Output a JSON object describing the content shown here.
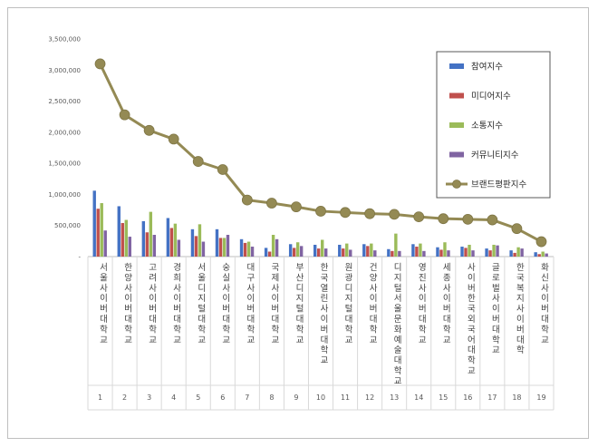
{
  "chart_data": {
    "type": "bar",
    "title": "",
    "xlabel": "",
    "ylabel": "",
    "ylim": [
      0,
      3500000
    ],
    "yticks": [
      "-",
      "500,000",
      "1,000,000",
      "1,500,000",
      "2,000,000",
      "2,500,000",
      "3,000,000",
      "3,500,000"
    ],
    "grid": false,
    "legend_position": "right",
    "categories": [
      "서울사이버대학교",
      "한양사이버대학교",
      "고려사이버대학교",
      "경희사이버대학교",
      "서울디지털대학교",
      "숭실사이버대학교",
      "대구사이버대학교",
      "국제사이버대학교",
      "부산디지털대학교",
      "한국열린사이버대학교",
      "원광디지털대학교",
      "건양사이버대학교",
      "디지털서울문화예술대학교",
      "영진사이버대학교",
      "세종사이버대학교",
      "사이버한국외국어대학교",
      "글로벌사이버대학교",
      "한국복지사이버대학",
      "화신사이버대학교"
    ],
    "indices": [
      "1",
      "2",
      "3",
      "4",
      "5",
      "6",
      "7",
      "8",
      "9",
      "10",
      "11",
      "12",
      "13",
      "14",
      "15",
      "16",
      "17",
      "18",
      "19"
    ],
    "series": [
      {
        "name": "참여지수",
        "kind": "bar",
        "color": "#4472c4",
        "values": [
          1060000,
          810000,
          570000,
          620000,
          440000,
          440000,
          280000,
          140000,
          200000,
          190000,
          190000,
          200000,
          120000,
          200000,
          150000,
          160000,
          130000,
          100000,
          70000
        ]
      },
      {
        "name": "미디어지수",
        "kind": "bar",
        "color": "#c0504d",
        "values": [
          770000,
          540000,
          390000,
          460000,
          330000,
          300000,
          220000,
          80000,
          140000,
          130000,
          130000,
          170000,
          90000,
          160000,
          110000,
          140000,
          100000,
          60000,
          40000
        ]
      },
      {
        "name": "소통지수",
        "kind": "bar",
        "color": "#9bbb59",
        "values": [
          860000,
          590000,
          720000,
          530000,
          520000,
          300000,
          240000,
          350000,
          230000,
          270000,
          210000,
          210000,
          370000,
          210000,
          230000,
          190000,
          190000,
          150000,
          80000
        ]
      },
      {
        "name": "커뮤니티지수",
        "kind": "bar",
        "color": "#8064a2",
        "values": [
          420000,
          320000,
          350000,
          270000,
          240000,
          350000,
          160000,
          280000,
          170000,
          130000,
          110000,
          100000,
          90000,
          90000,
          100000,
          100000,
          180000,
          130000,
          50000
        ]
      },
      {
        "name": "브랜드평판지수",
        "kind": "line",
        "color": "#948a54",
        "values": [
          3100000,
          2280000,
          2030000,
          1890000,
          1530000,
          1400000,
          910000,
          860000,
          800000,
          730000,
          710000,
          690000,
          680000,
          640000,
          610000,
          600000,
          590000,
          450000,
          240000
        ]
      }
    ]
  }
}
